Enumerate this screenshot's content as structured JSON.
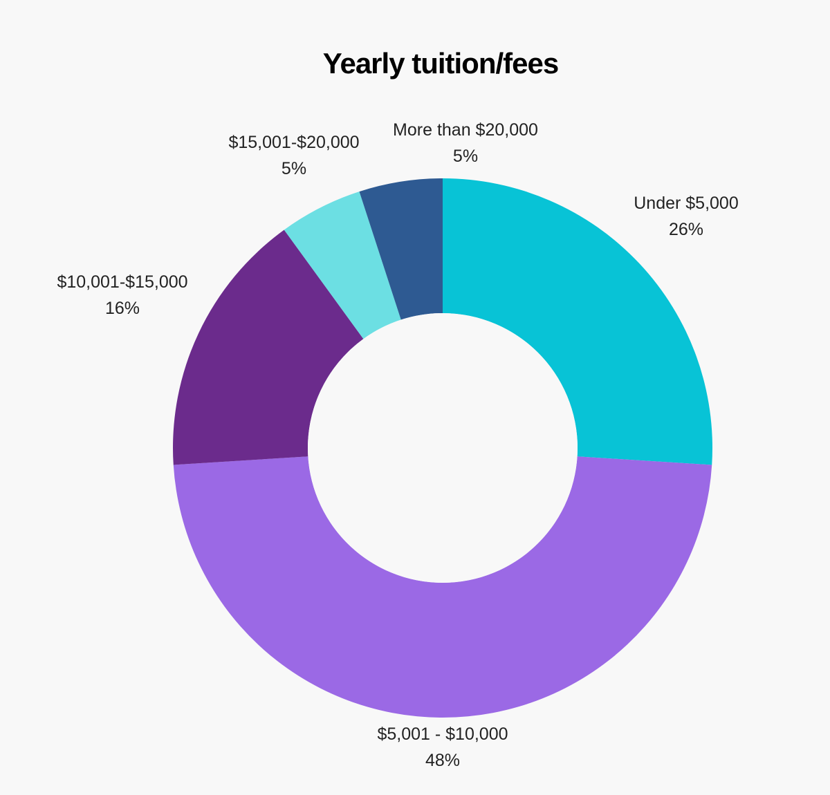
{
  "chart_data": {
    "type": "pie",
    "title": "Yearly tuition/fees",
    "donut": true,
    "categories": [
      "Under $5,000",
      "$5,001 - $10,000",
      "$10,001-$15,000",
      "$15,001-$20,000",
      "More than $20,000"
    ],
    "values": [
      26,
      48,
      16,
      5,
      5
    ],
    "value_labels": [
      "26%",
      "48%",
      "16%",
      "5%",
      "5%"
    ],
    "unit": "%",
    "colors": [
      "#08c3d6",
      "#9b69e5",
      "#6b2b8c",
      "#6cdfe3",
      "#2e5a92"
    ],
    "start": "12 o'clock",
    "direction": "clockwise",
    "legend": "none",
    "labels": "outside"
  }
}
